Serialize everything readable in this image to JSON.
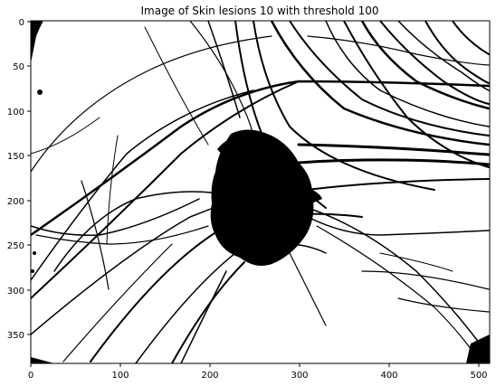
{
  "figure": {
    "title": "Image of Skin lesions 10 with threshold 100",
    "x_ticks": [
      "0",
      "100",
      "200",
      "300",
      "400",
      "500"
    ],
    "y_ticks": [
      "0",
      "50",
      "100",
      "150",
      "200",
      "250",
      "300",
      "350"
    ]
  },
  "colors": {
    "foreground": "#000000",
    "background": "#ffffff"
  }
}
